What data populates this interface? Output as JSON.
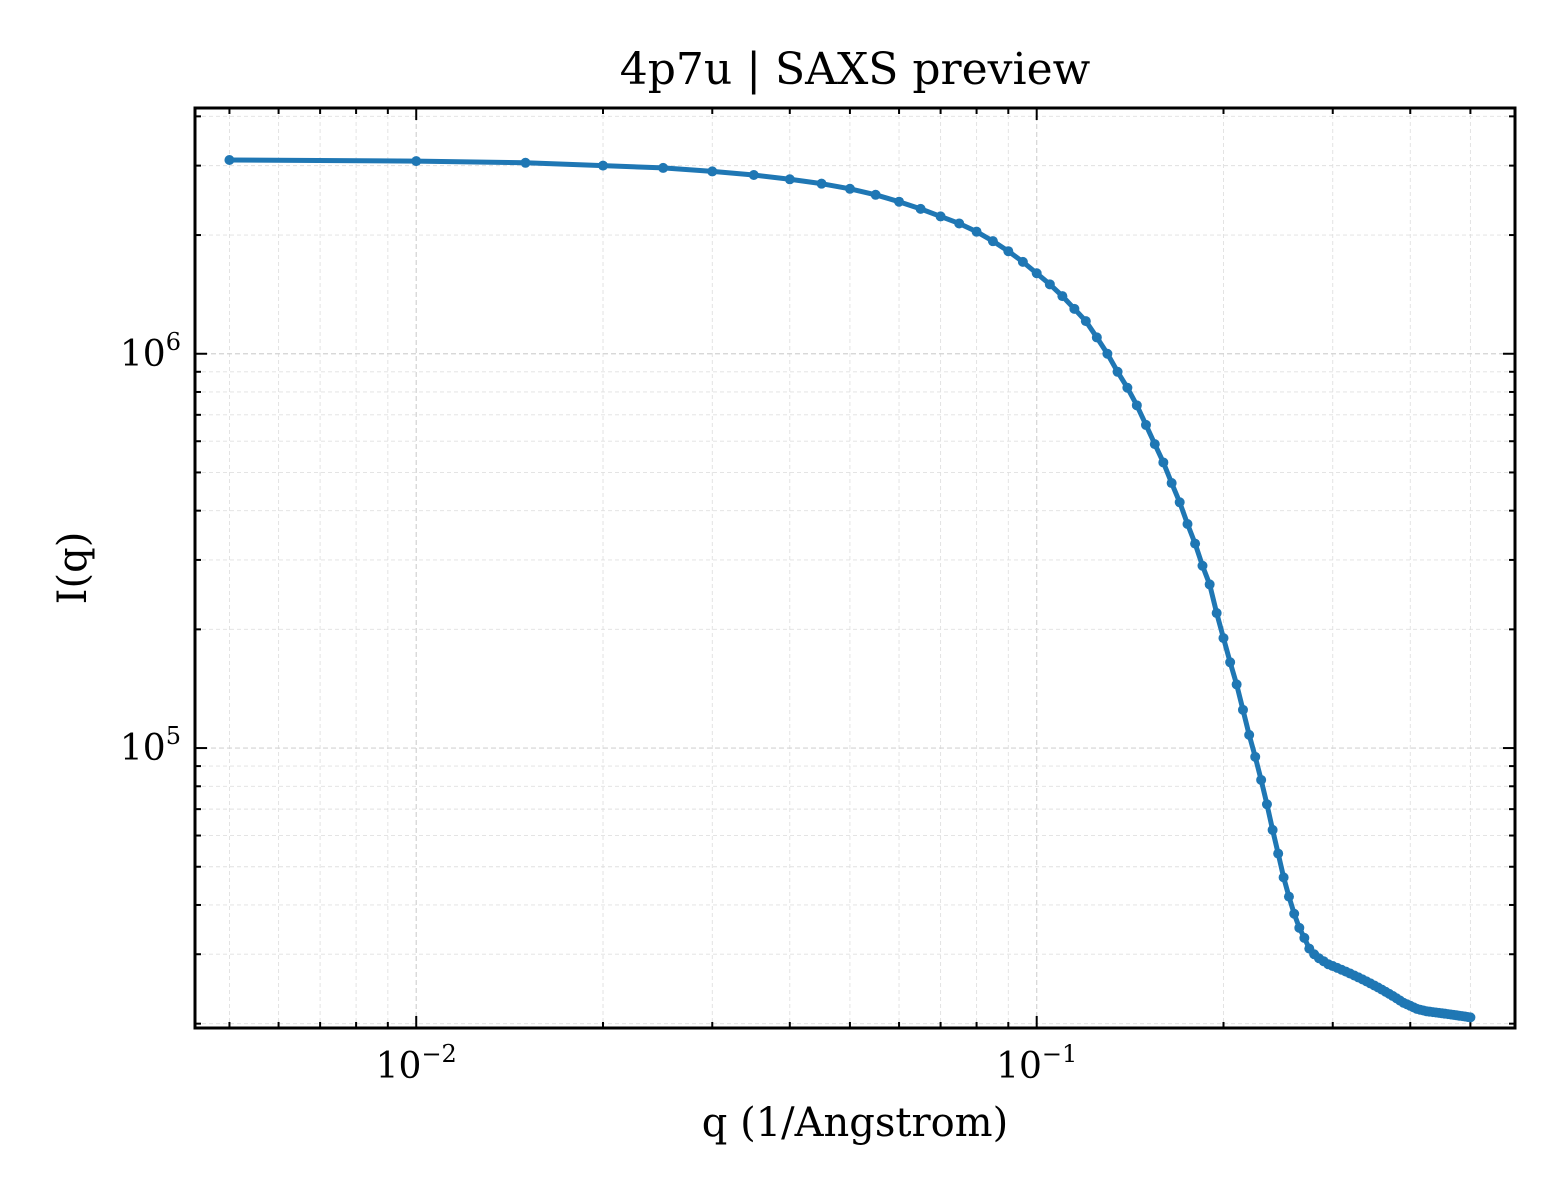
{
  "chart_data": {
    "type": "line",
    "title": "4p7u | SAXS preview",
    "xlabel": "q (1/Angstrom)",
    "ylabel": "I(q)",
    "xscale": "log",
    "yscale": "log",
    "xlim": [
      0.0044,
      0.59
    ],
    "ylim": [
      19500,
      4200000
    ],
    "grid": true,
    "x_ticks": [
      {
        "value": 0.01,
        "base": "10",
        "exp": "−2"
      },
      {
        "value": 0.1,
        "base": "10",
        "exp": "−1"
      }
    ],
    "y_ticks": [
      {
        "value": 100000,
        "base": "10",
        "exp": "5"
      },
      {
        "value": 1000000,
        "base": "10",
        "exp": "6"
      }
    ],
    "line_color": "#1f77b4",
    "series": [
      {
        "x": [
          0.005,
          0.01,
          0.015,
          0.02,
          0.025,
          0.03,
          0.035,
          0.04,
          0.045,
          0.05,
          0.055,
          0.06,
          0.065,
          0.07,
          0.075,
          0.08,
          0.085,
          0.09,
          0.095,
          0.1,
          0.105,
          0.11,
          0.115,
          0.12,
          0.125,
          0.13,
          0.135,
          0.14,
          0.145,
          0.15,
          0.155,
          0.16,
          0.165,
          0.17,
          0.175,
          0.18,
          0.185,
          0.19,
          0.195,
          0.2,
          0.205,
          0.21,
          0.215,
          0.22,
          0.225,
          0.23,
          0.235,
          0.24,
          0.245,
          0.25,
          0.255,
          0.26,
          0.265,
          0.27,
          0.275,
          0.28,
          0.285,
          0.29,
          0.295,
          0.3,
          0.305,
          0.31,
          0.315,
          0.32,
          0.325,
          0.33,
          0.335,
          0.34,
          0.345,
          0.35,
          0.355,
          0.36,
          0.365,
          0.37,
          0.375,
          0.38,
          0.385,
          0.39,
          0.395,
          0.4,
          0.405,
          0.41,
          0.415,
          0.42,
          0.425,
          0.43,
          0.435,
          0.44,
          0.445,
          0.45,
          0.455,
          0.46,
          0.465,
          0.47,
          0.475,
          0.48,
          0.485,
          0.49,
          0.495,
          0.5
        ],
        "y": [
          3100000,
          3080000,
          3050000,
          3000000,
          2960000,
          2900000,
          2840000,
          2770000,
          2700000,
          2620000,
          2530000,
          2430000,
          2330000,
          2230000,
          2140000,
          2040000,
          1930000,
          1820000,
          1710000,
          1600000,
          1500000,
          1400000,
          1300000,
          1210000,
          1100000,
          1000000,
          900000,
          820000,
          740000,
          660000,
          590000,
          530000,
          470000,
          420000,
          370000,
          330000,
          290000,
          260000,
          220000,
          190000,
          165000,
          145000,
          125000,
          108000,
          95000,
          83000,
          72000,
          62000,
          54000,
          47000,
          42000,
          38000,
          35000,
          33000,
          31000,
          30000,
          29300,
          28800,
          28300,
          28000,
          27700,
          27400,
          27100,
          26800,
          26500,
          26200,
          25900,
          25600,
          25300,
          25000,
          24700,
          24400,
          24100,
          23800,
          23500,
          23200,
          22900,
          22600,
          22400,
          22200,
          22000,
          21800,
          21700,
          21600,
          21500,
          21450,
          21400,
          21350,
          21300,
          21250,
          21200,
          21150,
          21100,
          21050,
          21000,
          20950,
          20900,
          20850,
          20800,
          20750
        ]
      }
    ]
  }
}
